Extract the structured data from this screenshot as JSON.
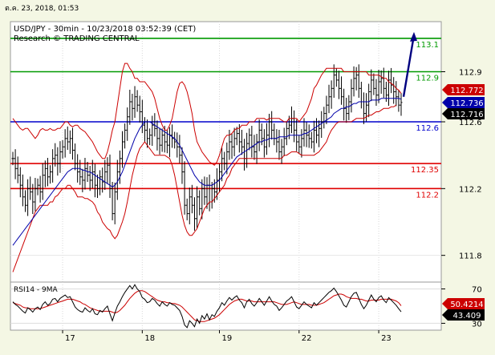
{
  "window": {
    "timestamp": "ต.ค. 23, 2018, 01:53"
  },
  "colors": {
    "background": "#f4f7e4",
    "plot_bg": "#ffffff",
    "price": "#000000",
    "bollinger": "#cc0000",
    "moving_average": "#0000aa",
    "support": "#e00000",
    "resistance": "#009900",
    "pivot": "#0000cc",
    "target_arrow": "#000080",
    "rsi": "#000000",
    "rsi_ma": "#cc0000"
  },
  "chart_data": [
    {
      "type": "line",
      "title": "USD/JPY - 30min - 10/23/2018 03:52:39 (CET)",
      "subtitle": "Research © TRADING CENTRAL",
      "x_ticks": [
        "17",
        "18",
        "19",
        "22",
        "23"
      ],
      "y_ticks": [
        "112.9",
        "112.6",
        "112.2",
        "111.8"
      ],
      "ylim": [
        111.64,
        113.2
      ],
      "levels": [
        {
          "label": "113.1",
          "value": 113.1,
          "kind": "resistance"
        },
        {
          "label": "112.9",
          "value": 112.9,
          "kind": "resistance"
        },
        {
          "label": "112.6",
          "value": 112.6,
          "kind": "pivot"
        },
        {
          "label": "112.35",
          "value": 112.35,
          "kind": "support"
        },
        {
          "label": "112.2",
          "value": 112.2,
          "kind": "support"
        }
      ],
      "price_tags": [
        {
          "label": "112.772",
          "value": 112.772,
          "kind": "bollinger"
        },
        {
          "label": "112.736",
          "value": 112.736,
          "kind": "moving_average"
        },
        {
          "label": "112.716",
          "value": 112.716,
          "kind": "price"
        }
      ],
      "close": [
        112.38,
        112.32,
        112.28,
        112.22,
        112.15,
        112.1,
        112.2,
        112.18,
        112.12,
        112.2,
        112.22,
        112.18,
        112.28,
        112.32,
        112.27,
        112.3,
        112.38,
        112.4,
        112.35,
        112.42,
        112.45,
        112.5,
        112.48,
        112.5,
        112.43,
        112.35,
        112.3,
        112.27,
        112.25,
        112.32,
        112.28,
        112.25,
        112.3,
        112.22,
        112.2,
        112.27,
        112.24,
        112.3,
        112.34,
        112.2,
        112.05,
        112.18,
        112.3,
        112.38,
        112.48,
        112.55,
        112.63,
        112.72,
        112.68,
        112.75,
        112.7,
        112.66,
        112.58,
        112.55,
        112.5,
        112.52,
        112.58,
        112.56,
        112.5,
        112.46,
        112.52,
        112.48,
        112.46,
        112.52,
        112.5,
        112.48,
        112.45,
        112.4,
        112.3,
        112.1,
        112.05,
        112.15,
        112.1,
        112.02,
        112.15,
        112.08,
        112.2,
        112.15,
        112.22,
        112.12,
        112.2,
        112.18,
        112.25,
        112.3,
        112.38,
        112.35,
        112.42,
        112.48,
        112.45,
        112.5,
        112.53,
        112.48,
        112.45,
        112.38,
        112.47,
        112.52,
        112.45,
        112.42,
        112.48,
        112.55,
        112.5,
        112.45,
        112.52,
        112.6,
        112.55,
        112.5,
        112.48,
        112.42,
        112.45,
        112.5,
        112.56,
        112.58,
        112.62,
        112.55,
        112.48,
        112.45,
        112.5,
        112.55,
        112.52,
        112.5,
        112.48,
        112.55,
        112.52,
        112.56,
        112.6,
        112.65,
        112.7,
        112.75,
        112.8,
        112.88,
        112.85,
        112.8,
        112.75,
        112.68,
        112.65,
        112.72,
        112.8,
        112.86,
        112.88,
        112.8,
        112.72,
        112.65,
        112.7,
        112.78,
        112.85,
        112.8,
        112.76,
        112.84,
        112.86,
        112.8,
        112.76,
        112.85,
        112.82,
        112.78,
        112.75,
        112.7,
        112.716
      ],
      "bollinger_upper": [
        112.62,
        112.6,
        112.58,
        112.56,
        112.55,
        112.56,
        112.56,
        112.54,
        112.52,
        112.5,
        112.52,
        112.55,
        112.56,
        112.55,
        112.55,
        112.56,
        112.55,
        112.55,
        112.56,
        112.56,
        112.58,
        112.6,
        112.6,
        112.58,
        112.57,
        112.58,
        112.58,
        112.56,
        112.55,
        112.54,
        112.52,
        112.5,
        112.48,
        112.45,
        112.42,
        112.4,
        112.38,
        112.38,
        112.42,
        112.48,
        112.55,
        112.6,
        112.7,
        112.8,
        112.9,
        112.95,
        112.95,
        112.92,
        112.9,
        112.86,
        112.86,
        112.84,
        112.84,
        112.84,
        112.82,
        112.8,
        112.78,
        112.74,
        112.68,
        112.62,
        112.58,
        112.55,
        112.55,
        112.58,
        112.62,
        112.7,
        112.78,
        112.83,
        112.84,
        112.82,
        112.78,
        112.72,
        112.65,
        112.55,
        112.48,
        112.45,
        112.42,
        112.4,
        112.38,
        112.36,
        112.35,
        112.34,
        112.36,
        112.4,
        112.45,
        112.5,
        112.52,
        112.52,
        112.53,
        112.55,
        112.56,
        112.56,
        112.58,
        112.58,
        112.58,
        112.6,
        112.6,
        112.6,
        112.62,
        112.62,
        112.62,
        112.62,
        112.61,
        112.62,
        112.62,
        112.62,
        112.62,
        112.62,
        112.61,
        112.6,
        112.6,
        112.62,
        112.62,
        112.62,
        112.62,
        112.6,
        112.62,
        112.64,
        112.66,
        112.7,
        112.74,
        112.8,
        112.82,
        112.85,
        112.88,
        112.9,
        112.92,
        112.92,
        112.92,
        112.92,
        112.92,
        112.92,
        112.92,
        112.9,
        112.9,
        112.9,
        112.9,
        112.9,
        112.9,
        112.9,
        112.9,
        112.9,
        112.9,
        112.88,
        112.88,
        112.88,
        112.88,
        112.88,
        112.87,
        112.86,
        112.86,
        112.84,
        112.83,
        112.82,
        112.8,
        112.79,
        112.77
      ],
      "bollinger_lower": [
        111.7,
        111.74,
        111.78,
        111.82,
        111.86,
        111.9,
        111.94,
        111.98,
        112.02,
        112.06,
        112.08,
        112.1,
        112.1,
        112.1,
        112.1,
        112.12,
        112.12,
        112.15,
        112.16,
        112.18,
        112.2,
        112.2,
        112.22,
        112.22,
        112.2,
        112.18,
        112.15,
        112.15,
        112.15,
        112.14,
        112.14,
        112.13,
        112.12,
        112.1,
        112.06,
        112.04,
        112.0,
        111.98,
        111.96,
        111.95,
        111.92,
        111.9,
        111.92,
        111.96,
        112.0,
        112.05,
        112.12,
        112.2,
        112.28,
        112.34,
        112.4,
        112.44,
        112.46,
        112.48,
        112.46,
        112.44,
        112.42,
        112.4,
        112.4,
        112.4,
        112.4,
        112.4,
        112.39,
        112.38,
        112.34,
        112.28,
        112.2,
        112.12,
        112.04,
        111.98,
        111.94,
        111.92,
        111.92,
        111.94,
        111.96,
        112.0,
        112.04,
        112.08,
        112.1,
        112.12,
        112.12,
        112.14,
        112.16,
        112.18,
        112.2,
        112.22,
        112.26,
        112.28,
        112.32,
        112.34,
        112.36,
        112.38,
        112.38,
        112.38,
        112.38,
        112.38,
        112.38,
        112.38,
        112.38,
        112.38,
        112.38,
        112.38,
        112.38,
        112.38,
        112.38,
        112.38,
        112.38,
        112.38,
        112.38,
        112.4,
        112.4,
        112.41,
        112.42,
        112.42,
        112.42,
        112.41,
        112.4,
        112.4,
        112.4,
        112.4,
        112.4,
        112.4,
        112.41,
        112.42,
        112.44,
        112.46,
        112.48,
        112.52,
        112.55,
        112.57,
        112.59,
        112.6,
        112.6,
        112.6,
        112.6,
        112.6,
        112.6,
        112.61,
        112.62,
        112.62,
        112.62,
        112.62,
        112.63,
        112.64,
        112.64,
        112.65,
        112.66,
        112.66,
        112.67,
        112.68,
        112.68,
        112.68,
        112.69,
        112.69,
        112.7
      ],
      "moving_average": [
        111.86,
        111.88,
        111.9,
        111.92,
        111.94,
        111.96,
        111.98,
        112.0,
        112.02,
        112.04,
        112.06,
        112.08,
        112.1,
        112.12,
        112.14,
        112.16,
        112.18,
        112.2,
        112.22,
        112.24,
        112.26,
        112.28,
        112.3,
        112.31,
        112.32,
        112.32,
        112.32,
        112.32,
        112.31,
        112.31,
        112.3,
        112.3,
        112.29,
        112.28,
        112.27,
        112.26,
        112.25,
        112.24,
        112.23,
        112.22,
        112.21,
        112.22,
        112.24,
        112.27,
        112.3,
        112.34,
        112.38,
        112.42,
        112.46,
        112.5,
        112.53,
        112.56,
        112.58,
        112.6,
        112.6,
        112.6,
        112.59,
        112.58,
        112.57,
        112.56,
        112.55,
        112.54,
        112.53,
        112.52,
        112.51,
        112.5,
        112.48,
        112.46,
        112.43,
        112.4,
        112.37,
        112.34,
        112.31,
        112.28,
        112.26,
        112.24,
        112.23,
        112.22,
        112.22,
        112.22,
        112.22,
        112.23,
        112.24,
        112.25,
        112.27,
        112.29,
        112.31,
        112.33,
        112.35,
        112.37,
        112.39,
        112.4,
        112.41,
        112.42,
        112.43,
        112.44,
        112.45,
        112.46,
        112.47,
        112.48,
        112.48,
        112.49,
        112.49,
        112.5,
        112.5,
        112.5,
        112.5,
        112.51,
        112.51,
        112.51,
        112.51,
        112.52,
        112.52,
        112.52,
        112.52,
        112.52,
        112.52,
        112.53,
        112.53,
        112.54,
        112.55,
        112.56,
        112.57,
        112.58,
        112.59,
        112.6,
        112.61,
        112.62,
        112.63,
        112.65,
        112.66,
        112.67,
        112.68,
        112.68,
        112.69,
        112.69,
        112.7,
        112.71,
        112.71,
        112.72,
        112.72,
        112.72,
        112.72,
        112.72,
        112.73,
        112.73,
        112.73,
        112.73,
        112.74,
        112.74,
        112.74,
        112.74,
        112.74,
        112.74,
        112.74,
        112.74,
        112.736
      ],
      "forecast": {
        "from": 112.75,
        "to": 113.1
      }
    },
    {
      "type": "line",
      "title": "RSI14 - 9MA",
      "y_ticks": [
        "70",
        "30"
      ],
      "ylim": [
        22,
        78
      ],
      "tags": [
        {
          "label": "50.4214",
          "value": 50.4214,
          "kind": "rsi_ma"
        },
        {
          "label": "43.409",
          "value": 43.409,
          "kind": "rsi"
        }
      ],
      "rsi": [
        55,
        52,
        50,
        47,
        44,
        42,
        48,
        46,
        43,
        47,
        49,
        46,
        52,
        55,
        51,
        53,
        58,
        59,
        55,
        59,
        61,
        63,
        60,
        61,
        55,
        49,
        46,
        44,
        43,
        48,
        45,
        43,
        47,
        41,
        40,
        45,
        43,
        47,
        50,
        41,
        33,
        42,
        50,
        55,
        61,
        66,
        70,
        74,
        70,
        75,
        70,
        67,
        60,
        58,
        54,
        55,
        59,
        57,
        53,
        50,
        55,
        52,
        50,
        54,
        52,
        51,
        48,
        45,
        38,
        28,
        25,
        33,
        30,
        26,
        35,
        30,
        39,
        35,
        41,
        34,
        40,
        38,
        44,
        48,
        54,
        51,
        56,
        60,
        57,
        60,
        62,
        57,
        54,
        48,
        55,
        58,
        53,
        50,
        54,
        59,
        55,
        51,
        56,
        61,
        56,
        52,
        50,
        45,
        48,
        52,
        56,
        58,
        61,
        55,
        49,
        47,
        51,
        55,
        52,
        50,
        48,
        54,
        51,
        54,
        57,
        60,
        63,
        66,
        68,
        71,
        67,
        62,
        57,
        51,
        49,
        55,
        61,
        65,
        66,
        59,
        52,
        47,
        51,
        57,
        63,
        58,
        55,
        60,
        62,
        57,
        54,
        60,
        57,
        54,
        51,
        47,
        43.409
      ],
      "rsi_ma": [
        54,
        53,
        52,
        51,
        49,
        48,
        48,
        47,
        47,
        47,
        47,
        47,
        48,
        49,
        50,
        51,
        52,
        53,
        54,
        55,
        56,
        57,
        58,
        58,
        58,
        57,
        56,
        55,
        53,
        52,
        50,
        48,
        47,
        46,
        45,
        44,
        44,
        44,
        44,
        44,
        43,
        42,
        43,
        45,
        48,
        51,
        55,
        59,
        62,
        65,
        67,
        68,
        68,
        67,
        65,
        63,
        61,
        59,
        57,
        56,
        55,
        55,
        54,
        54,
        53,
        53,
        52,
        51,
        49,
        46,
        43,
        40,
        37,
        34,
        33,
        32,
        32,
        32,
        33,
        34,
        35,
        36,
        38,
        40,
        43,
        46,
        49,
        52,
        54,
        56,
        57,
        58,
        58,
        57,
        56,
        56,
        56,
        55,
        55,
        55,
        55,
        55,
        55,
        55,
        55,
        55,
        54,
        53,
        52,
        52,
        52,
        53,
        54,
        55,
        54,
        53,
        52,
        52,
        52,
        52,
        51,
        51,
        51,
        52,
        53,
        54,
        56,
        58,
        60,
        62,
        63,
        64,
        64,
        63,
        61,
        60,
        59,
        59,
        59,
        58,
        58,
        57,
        56,
        56,
        57,
        57,
        57,
        57,
        58,
        58,
        58,
        58,
        58,
        57,
        56,
        54,
        50.4214
      ]
    }
  ]
}
